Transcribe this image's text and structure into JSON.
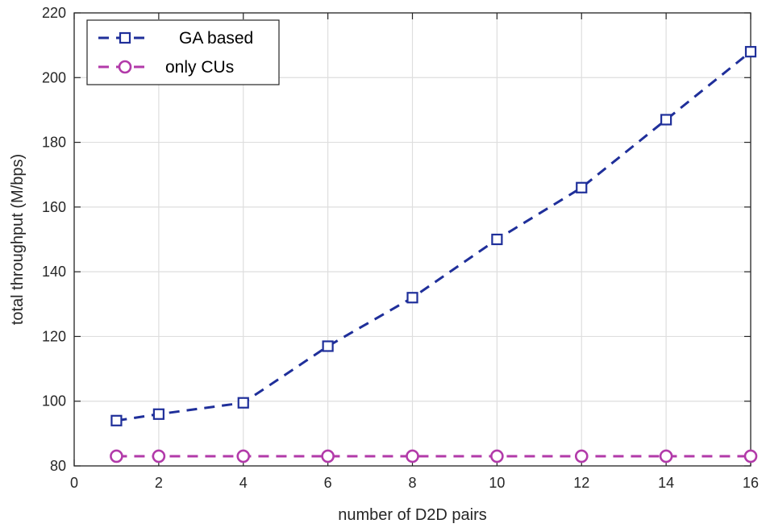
{
  "chart_data": {
    "type": "line",
    "title": "",
    "xlabel": "number of D2D pairs",
    "ylabel": "total throughput (M/bps)",
    "xlim": [
      0,
      16
    ],
    "ylim": [
      80,
      220
    ],
    "xticks": [
      0,
      2,
      4,
      6,
      8,
      10,
      12,
      14,
      16
    ],
    "yticks": [
      80,
      100,
      120,
      140,
      160,
      180,
      200,
      220
    ],
    "grid": true,
    "legend_position": "top-left",
    "series": [
      {
        "name": "GA based",
        "color": "#1f2f9a",
        "marker": "square",
        "line_style": "dashed",
        "x": [
          1,
          2,
          4,
          6,
          8,
          10,
          12,
          14,
          16
        ],
        "values": [
          94,
          96,
          99.5,
          117,
          132,
          150,
          166,
          187,
          208
        ]
      },
      {
        "name": "only CUs",
        "color": "#b23aa9",
        "marker": "circle",
        "line_style": "dashed",
        "x": [
          1,
          2,
          4,
          6,
          8,
          10,
          12,
          14,
          16
        ],
        "values": [
          83,
          83,
          83,
          83,
          83,
          83,
          83,
          83,
          83
        ]
      }
    ]
  }
}
